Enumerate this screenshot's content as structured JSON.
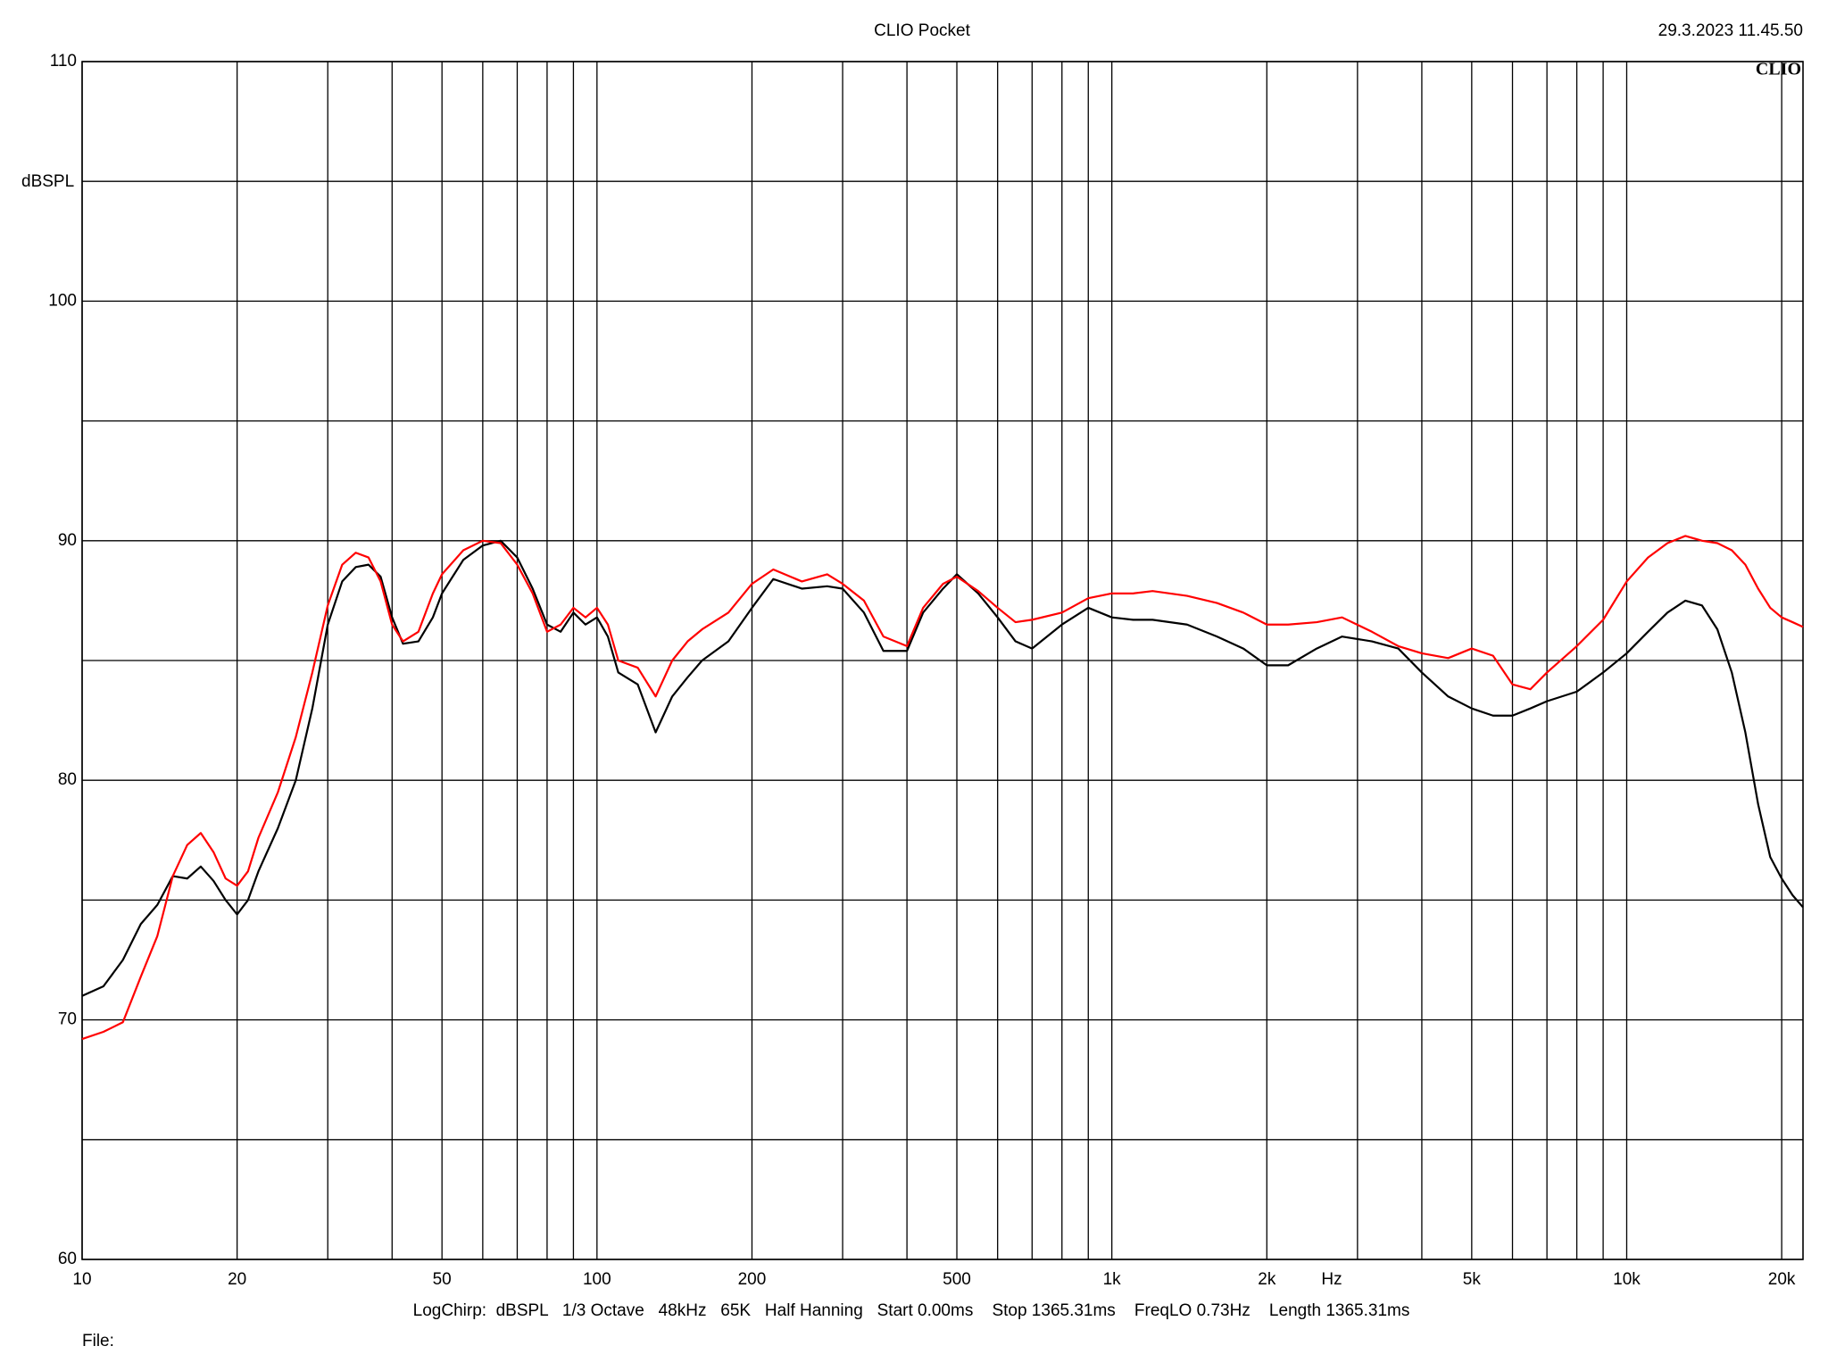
{
  "chart_data": {
    "type": "line",
    "title": "CLIO Pocket",
    "timestamp": "29.3.2023 11.45.50",
    "logo": "CLIO",
    "ylabel": "dBSPL",
    "xlabel": "Hz",
    "footer": "LogChirp:  dBSPL   1/3 Octave   48kHz   65K   Half Hanning   Start 0.00ms    Stop 1365.31ms    FreqLO 0.73Hz    Length 1365.31ms",
    "file_label": "File:",
    "xscale": "log",
    "grid": true,
    "xlim": [
      10,
      22000
    ],
    "ylim": [
      60,
      110
    ],
    "xticks": [
      10,
      20,
      50,
      100,
      200,
      500,
      {
        "value": 1000,
        "label": "1k"
      },
      {
        "value": 2000,
        "label": "2k"
      },
      {
        "value": 5000,
        "label": "5k"
      },
      {
        "value": 10000,
        "label": "10k"
      },
      {
        "value": 20000,
        "label": "20k"
      }
    ],
    "minor_xticks": [
      30,
      40,
      60,
      70,
      80,
      90,
      300,
      400,
      600,
      700,
      800,
      900,
      3000,
      4000,
      6000,
      7000,
      8000,
      9000
    ],
    "yticks": [
      60,
      70,
      80,
      90,
      100,
      110
    ],
    "minor_yticks": [
      65,
      75,
      85,
      95,
      105
    ],
    "x": [
      10,
      11,
      12,
      13,
      14,
      15,
      16,
      17,
      18,
      19,
      20,
      21,
      22,
      24,
      26,
      28,
      30,
      32,
      34,
      36,
      38,
      40,
      42,
      45,
      48,
      50,
      55,
      60,
      65,
      70,
      75,
      80,
      85,
      90,
      95,
      100,
      105,
      110,
      120,
      130,
      140,
      150,
      160,
      180,
      200,
      220,
      250,
      280,
      300,
      330,
      360,
      400,
      430,
      470,
      500,
      550,
      600,
      650,
      700,
      800,
      900,
      1000,
      1100,
      1200,
      1400,
      1600,
      1800,
      2000,
      2200,
      2500,
      2800,
      3200,
      3600,
      4000,
      4500,
      5000,
      5500,
      6000,
      6500,
      7000,
      8000,
      9000,
      10000,
      11000,
      12000,
      13000,
      14000,
      15000,
      16000,
      17000,
      18000,
      19000,
      20000,
      21000,
      22000
    ],
    "series": [
      {
        "color": "#000000",
        "values": [
          71.0,
          71.4,
          72.5,
          74.0,
          74.8,
          76.0,
          75.9,
          76.4,
          75.8,
          75.0,
          74.4,
          75.0,
          76.2,
          78.0,
          80.0,
          83.0,
          86.5,
          88.3,
          88.9,
          89.0,
          88.5,
          86.8,
          85.7,
          85.8,
          86.8,
          87.8,
          89.2,
          89.8,
          90.0,
          89.3,
          88.0,
          86.5,
          86.2,
          87.0,
          86.5,
          86.8,
          86.0,
          84.5,
          84.0,
          82.0,
          83.5,
          84.3,
          85.0,
          85.8,
          87.2,
          88.4,
          88.0,
          88.1,
          88.0,
          87.0,
          85.4,
          85.4,
          87.0,
          88.0,
          88.6,
          87.8,
          86.8,
          85.8,
          85.5,
          86.5,
          87.2,
          86.8,
          86.7,
          86.7,
          86.5,
          86.0,
          85.5,
          84.8,
          84.8,
          85.5,
          86.0,
          85.8,
          85.5,
          84.5,
          83.5,
          83.0,
          82.7,
          82.7,
          83.0,
          83.3,
          83.7,
          84.5,
          85.3,
          86.2,
          87.0,
          87.5,
          87.3,
          86.3,
          84.5,
          82.0,
          79.0,
          76.8,
          75.9,
          75.2,
          74.7
        ]
      },
      {
        "color": "#ff0000",
        "values": [
          69.2,
          69.5,
          69.9,
          71.8,
          73.5,
          76.0,
          77.3,
          77.8,
          77.0,
          75.9,
          75.6,
          76.2,
          77.6,
          79.5,
          81.8,
          84.5,
          87.3,
          89.0,
          89.5,
          89.3,
          88.3,
          86.5,
          85.8,
          86.2,
          87.8,
          88.6,
          89.6,
          90.0,
          89.9,
          89.0,
          87.8,
          86.2,
          86.5,
          87.2,
          86.8,
          87.2,
          86.5,
          85.0,
          84.7,
          83.5,
          85.0,
          85.8,
          86.3,
          87.0,
          88.2,
          88.8,
          88.3,
          88.6,
          88.2,
          87.5,
          86.0,
          85.6,
          87.2,
          88.2,
          88.5,
          87.9,
          87.2,
          86.6,
          86.7,
          87.0,
          87.6,
          87.8,
          87.8,
          87.9,
          87.7,
          87.4,
          87.0,
          86.5,
          86.5,
          86.6,
          86.8,
          86.2,
          85.6,
          85.3,
          85.1,
          85.5,
          85.2,
          84.0,
          83.8,
          84.5,
          85.6,
          86.7,
          88.3,
          89.3,
          89.9,
          90.2,
          90.0,
          89.9,
          89.6,
          89.0,
          88.0,
          87.2,
          86.8,
          86.6,
          86.4
        ]
      }
    ]
  }
}
